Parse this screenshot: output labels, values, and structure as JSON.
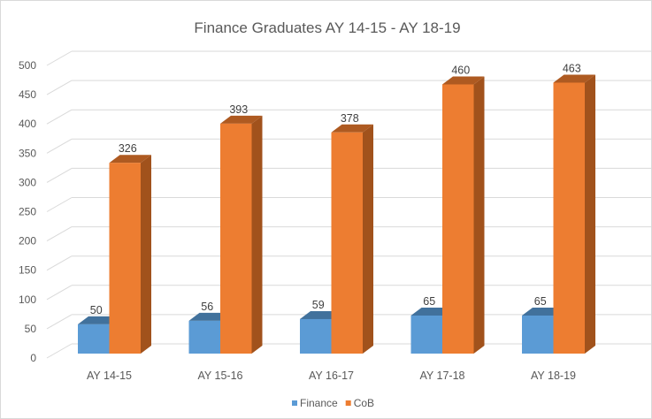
{
  "chart_data": {
    "type": "bar",
    "style": "3d-clustered-column",
    "title": "Finance Graduates AY 14-15 - AY 18-19",
    "xlabel": "",
    "ylabel": "",
    "categories": [
      "AY 14-15",
      "AY 15-16",
      "AY 16-17",
      "AY 17-18",
      "AY 18-19"
    ],
    "series": [
      {
        "name": "Finance",
        "values": [
          50,
          56,
          59,
          65,
          65
        ],
        "color": "#5b9bd5",
        "top_color": "#41719c",
        "side_color": "#41719c"
      },
      {
        "name": "CoB",
        "values": [
          326,
          393,
          378,
          460,
          463
        ],
        "color": "#ed7d31",
        "top_color": "#ae5a21",
        "side_color": "#a1521c"
      }
    ],
    "ylim": [
      0,
      500
    ],
    "yticks": [
      0,
      50,
      100,
      150,
      200,
      250,
      300,
      350,
      400,
      450,
      500
    ],
    "grid": true,
    "data_labels": true,
    "legend": "bottom-center"
  }
}
